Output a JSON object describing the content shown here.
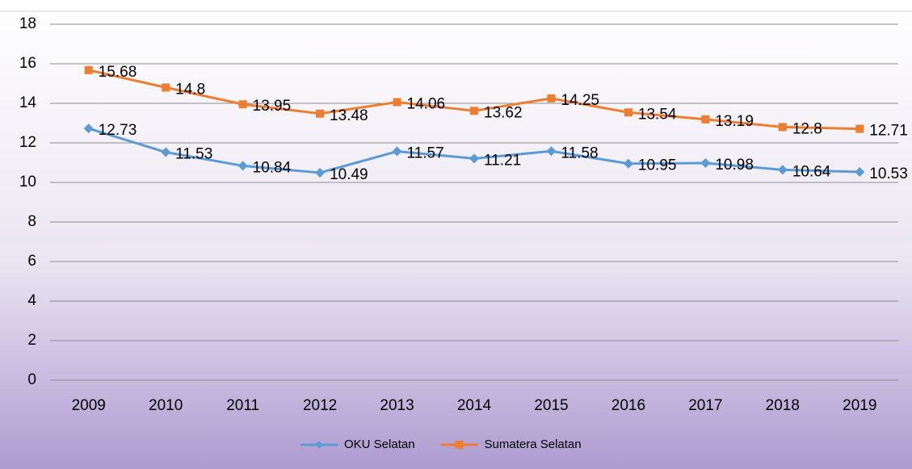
{
  "chart_data": {
    "type": "line",
    "categories": [
      "2009",
      "2010",
      "2011",
      "2012",
      "2013",
      "2014",
      "2015",
      "2016",
      "2017",
      "2018",
      "2019"
    ],
    "series": [
      {
        "name": "OKU Selatan",
        "color": "#5b9bd5",
        "marker": "diamond",
        "values": [
          12.73,
          11.53,
          10.84,
          10.49,
          11.57,
          11.21,
          11.58,
          10.95,
          10.98,
          10.64,
          10.53
        ]
      },
      {
        "name": "Sumatera Selatan",
        "color": "#ed7d31",
        "marker": "square",
        "values": [
          15.68,
          14.8,
          13.95,
          13.48,
          14.06,
          13.62,
          14.25,
          13.54,
          13.19,
          12.8,
          12.71
        ]
      }
    ],
    "ylim": [
      0,
      18
    ],
    "yticks": [
      0,
      2,
      4,
      6,
      8,
      10,
      12,
      14,
      16,
      18
    ],
    "grid": true,
    "legend": "bottom",
    "data_labels": true
  }
}
